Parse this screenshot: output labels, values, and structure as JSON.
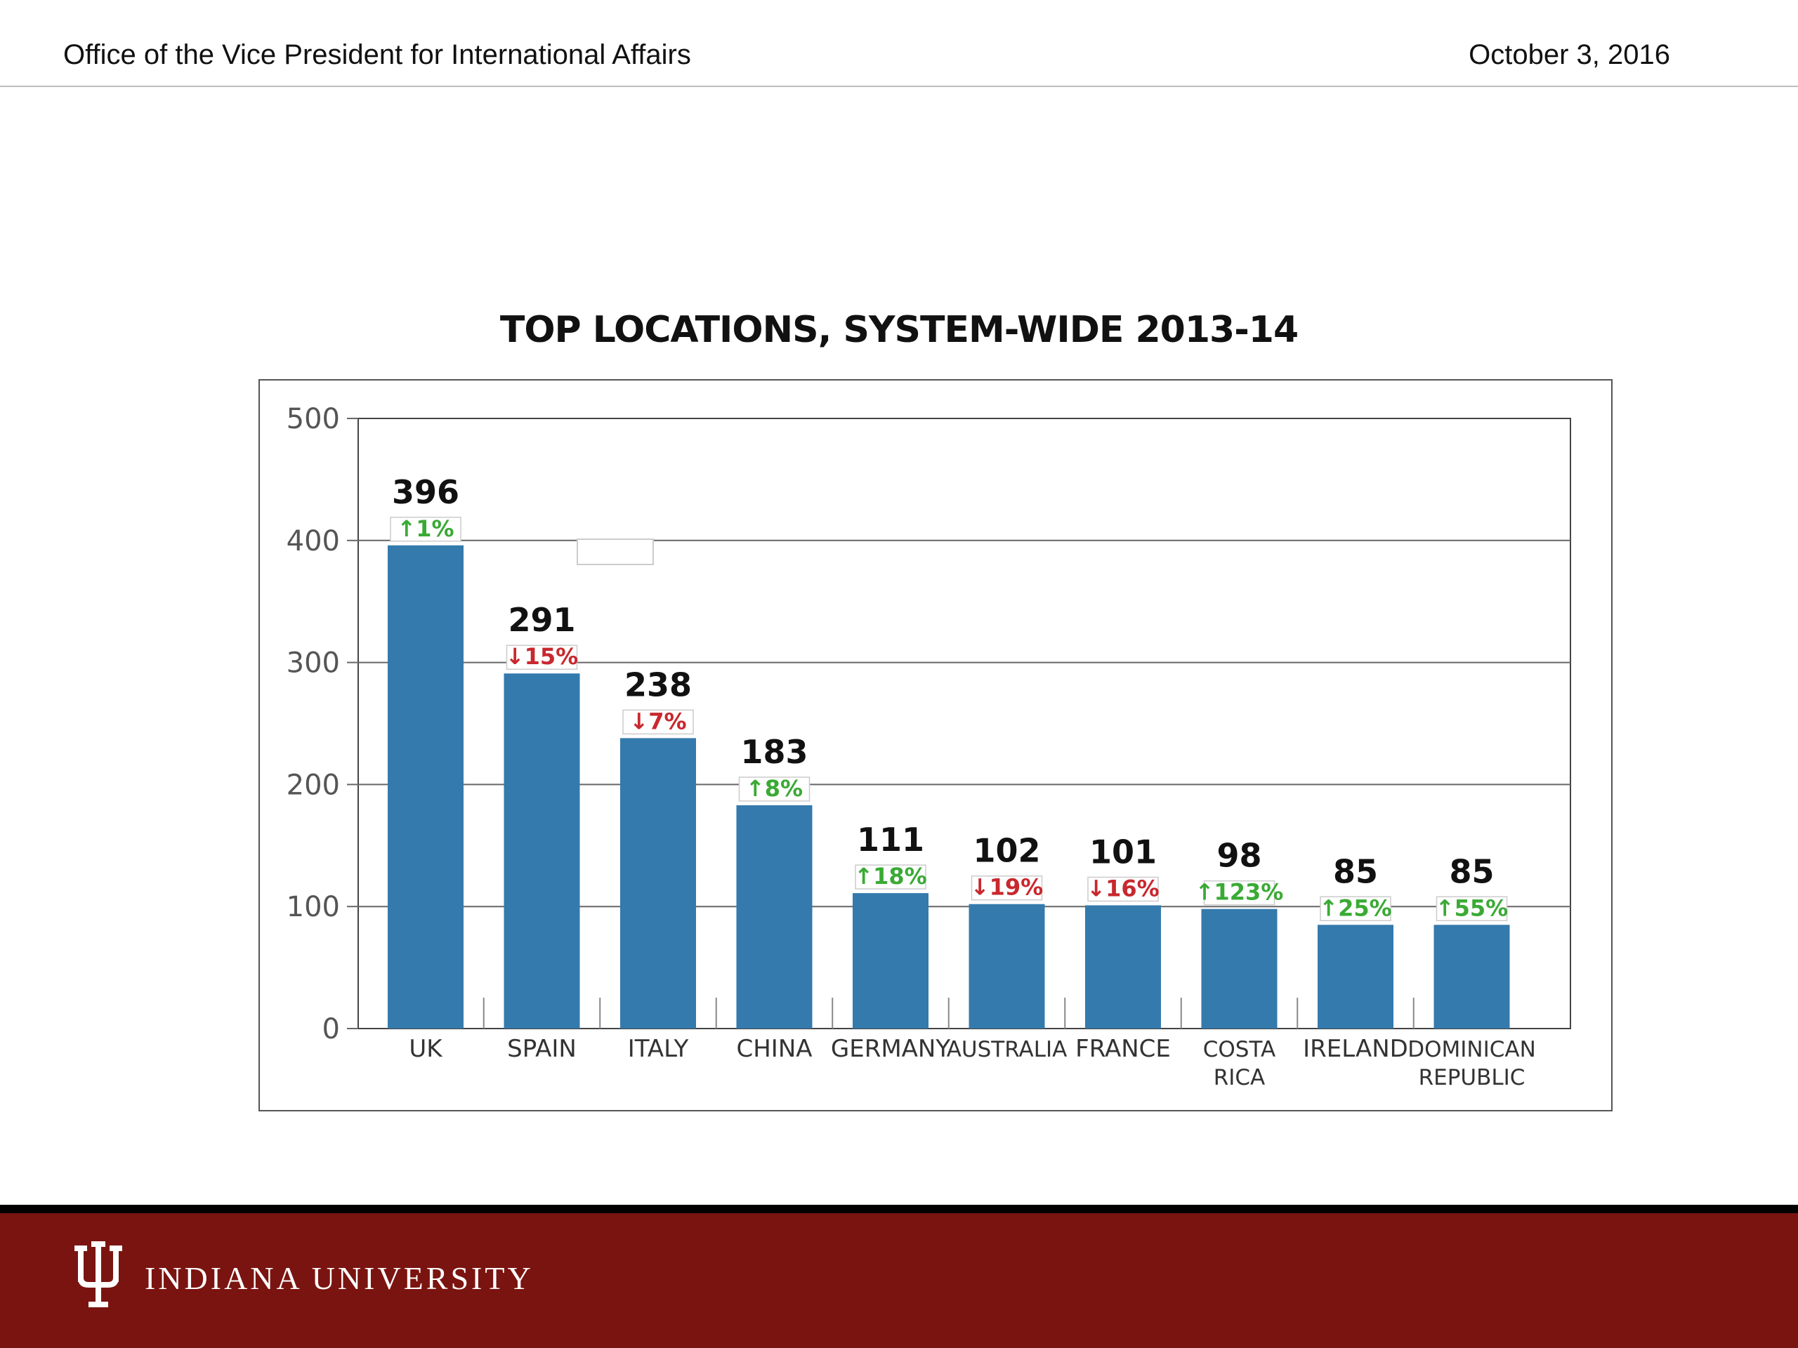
{
  "header": {
    "office": "Office of the Vice President for International Affairs",
    "date": "October 3, 2016"
  },
  "footer": {
    "university": "INDIANA UNIVERSITY"
  },
  "colors": {
    "bar": "#347aad",
    "up": "#3aaa35",
    "down": "#c8282e",
    "footer": "#7a1410"
  },
  "chart_data": {
    "type": "bar",
    "title": "TOP LOCATIONS, SYSTEM-WIDE 2013-14",
    "categories": [
      [
        "UK"
      ],
      [
        "SPAIN"
      ],
      [
        "ITALY"
      ],
      [
        "CHINA"
      ],
      [
        "GERMANY"
      ],
      [
        "AUSTRALIA"
      ],
      [
        "FRANCE"
      ],
      [
        "COSTA",
        "RICA"
      ],
      [
        "IRELAND"
      ],
      [
        "DOMINICAN",
        "REPUBLIC"
      ]
    ],
    "values": [
      396,
      291,
      238,
      183,
      111,
      102,
      101,
      98,
      85,
      85
    ],
    "change_labels": [
      "1%",
      "15%",
      "7%",
      "8%",
      "18%",
      "19%",
      "16%",
      "123%",
      "25%",
      "55%"
    ],
    "change_direction": [
      "up",
      "down",
      "down",
      "up",
      "up",
      "down",
      "down",
      "up",
      "up",
      "up"
    ],
    "yticks": [
      0,
      100,
      200,
      300,
      400,
      500
    ],
    "ylim": [
      0,
      500
    ],
    "grid": true,
    "legend": "none",
    "xlabel": "",
    "ylabel": ""
  }
}
